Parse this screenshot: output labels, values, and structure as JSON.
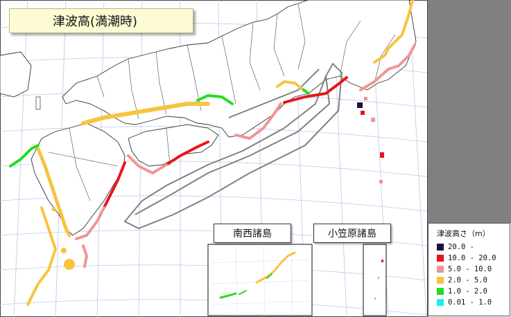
{
  "title": "津波高(満潮時)",
  "insets": [
    {
      "label": "南西諸島"
    },
    {
      "label": "小笠原諸島"
    }
  ],
  "legend": {
    "title": "津波高さ（m）",
    "items": [
      {
        "label": "20.0 -",
        "color": "#20103a"
      },
      {
        "label": "10.0 - 20.0",
        "color": "#e8141a"
      },
      {
        "label": "5.0 - 10.0",
        "color": "#f29494"
      },
      {
        "label": "2.0 - 5.0",
        "color": "#f7c340"
      },
      {
        "label": "1.0 - 2.0",
        "color": "#22dd22"
      },
      {
        "label": "0.01 - 1.0",
        "color": "#22eeee"
      }
    ]
  },
  "colors": {
    "land": "#ffffff",
    "sea_panel": "#808080",
    "grid": "#b9c7ea",
    "model_outline": "#808080"
  }
}
